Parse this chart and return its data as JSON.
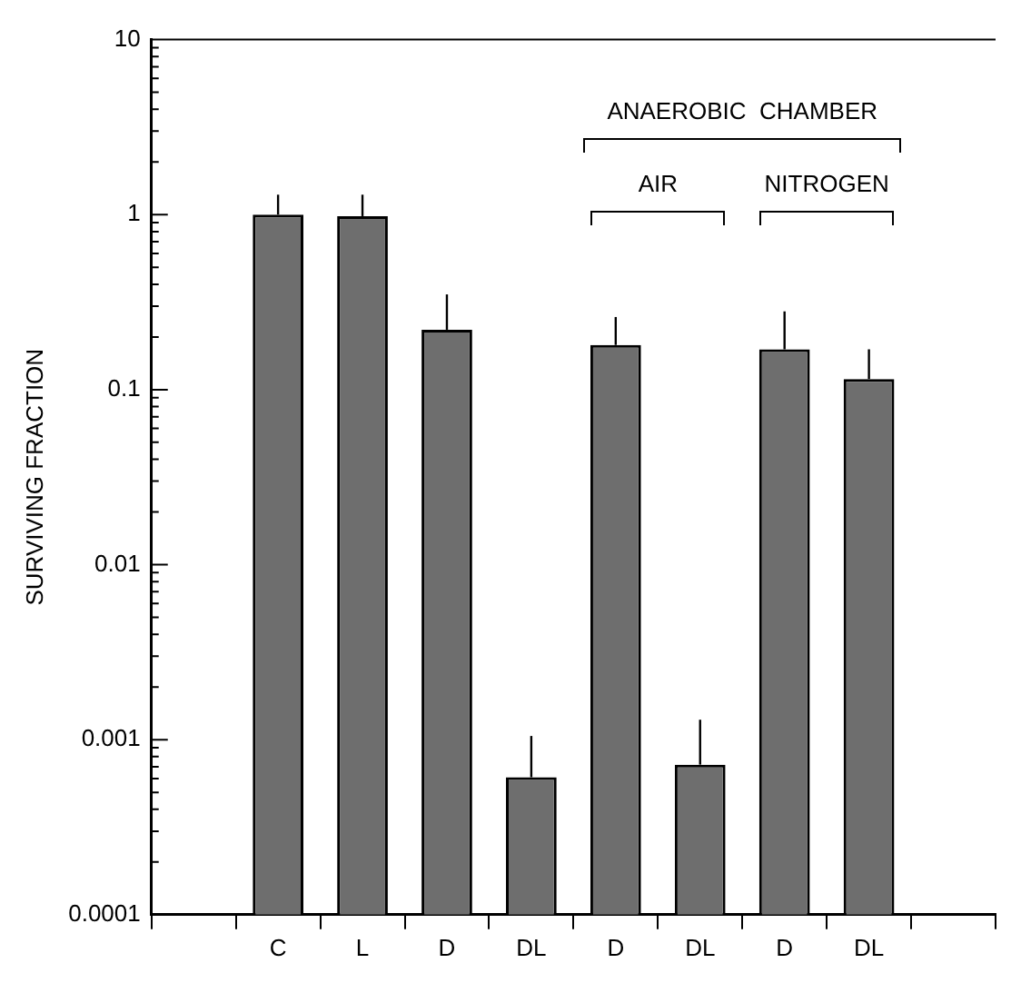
{
  "chart_data": {
    "type": "bar",
    "ylabel": "SURVIVING FRACTION",
    "categories": [
      null,
      "C",
      "L",
      "D",
      "DL",
      "D",
      "DL",
      "D",
      "DL",
      null
    ],
    "values": [
      null,
      1.0,
      0.98,
      0.22,
      0.00061,
      0.18,
      0.00072,
      0.17,
      0.115,
      null
    ],
    "errors": [
      null,
      [
        1.0,
        1.3
      ],
      [
        0.98,
        1.3
      ],
      [
        0.22,
        0.35
      ],
      [
        0.00061,
        0.00105
      ],
      [
        0.18,
        0.26
      ],
      [
        0.00072,
        0.0013
      ],
      [
        0.17,
        0.28
      ],
      [
        0.115,
        0.17
      ],
      null
    ],
    "color": "#6e6e6e",
    "log": "y",
    "ylim": [
      0.0001,
      10
    ],
    "yticks": [
      {
        "value": 0.0001,
        "label": "0.0001"
      },
      {
        "value": 0.0002,
        "label": null
      },
      {
        "value": 0.0003,
        "label": null
      },
      {
        "value": 0.0004,
        "label": null
      },
      {
        "value": 0.0005,
        "label": null
      },
      {
        "value": 0.0006,
        "label": null
      },
      {
        "value": 0.0007,
        "label": null
      },
      {
        "value": 0.0008,
        "label": null
      },
      {
        "value": 0.0009,
        "label": null
      },
      {
        "value": 0.001,
        "label": "0.001"
      },
      {
        "value": 0.002,
        "label": null
      },
      {
        "value": 0.003,
        "label": null
      },
      {
        "value": 0.004,
        "label": null
      },
      {
        "value": 0.005,
        "label": null
      },
      {
        "value": 0.006,
        "label": null
      },
      {
        "value": 0.007,
        "label": null
      },
      {
        "value": 0.008,
        "label": null
      },
      {
        "value": 0.009,
        "label": null
      },
      {
        "value": 0.01,
        "label": "0.01"
      },
      {
        "value": 0.02,
        "label": null
      },
      {
        "value": 0.03,
        "label": null
      },
      {
        "value": 0.04,
        "label": null
      },
      {
        "value": 0.05,
        "label": null
      },
      {
        "value": 0.06,
        "label": null
      },
      {
        "value": 0.07,
        "label": null
      },
      {
        "value": 0.08,
        "label": null
      },
      {
        "value": 0.09,
        "label": null
      },
      {
        "value": 0.1,
        "label": "0.1"
      },
      {
        "value": 0.2,
        "label": null
      },
      {
        "value": 0.3,
        "label": null
      },
      {
        "value": 0.4,
        "label": null
      },
      {
        "value": 0.5,
        "label": null
      },
      {
        "value": 0.6,
        "label": null
      },
      {
        "value": 0.7,
        "label": null
      },
      {
        "value": 0.8,
        "label": null
      },
      {
        "value": 0.9,
        "label": null
      },
      {
        "value": 1,
        "label": "1"
      },
      {
        "value": 2,
        "label": null
      },
      {
        "value": 3,
        "label": null
      },
      {
        "value": 4,
        "label": null
      },
      {
        "value": 5,
        "label": null
      },
      {
        "value": 6,
        "label": null
      },
      {
        "value": 7,
        "label": null
      },
      {
        "value": 8,
        "label": null
      },
      {
        "value": 9,
        "label": null
      },
      {
        "value": 10,
        "label": "10"
      }
    ],
    "annotations": [
      "ANAEROBIC  CHAMBER",
      "AIR",
      "NITROGEN"
    ],
    "grid": false,
    "legend": false
  }
}
